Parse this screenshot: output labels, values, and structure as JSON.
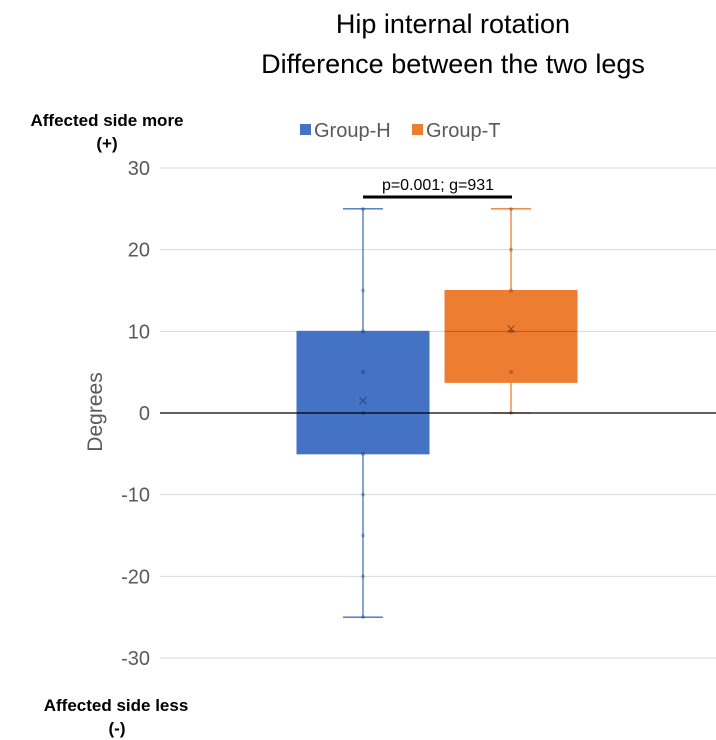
{
  "title_line1": "Hip internal rotation",
  "title_line2": "Difference between the two legs",
  "side_notes": {
    "top_line1": "Affected side more",
    "top_line2": "(+)",
    "bottom_line1": "Affected side less",
    "bottom_line2": "(-)"
  },
  "annotation": "p=0.001; g=931",
  "colors": {
    "group_h": "#4472C4",
    "group_t": "#ED7D31",
    "grid": "#d9d9d9",
    "tick_text": "#595959"
  },
  "chart_data": {
    "type": "box",
    "title": "Hip internal rotation Difference between the two legs",
    "ylabel": "Degrees",
    "ylim": [
      -30,
      30
    ],
    "yticks": [
      -30,
      -20,
      -10,
      0,
      10,
      20,
      30
    ],
    "grid": true,
    "legend": "top",
    "series": [
      {
        "name": "Group-H",
        "min": -25,
        "q1": -5,
        "median": 0,
        "q3": 10,
        "max": 25,
        "mean": 1.5,
        "points": [
          25,
          15,
          10,
          5,
          0,
          -5,
          -10,
          -15,
          -20,
          -25
        ]
      },
      {
        "name": "Group-T",
        "min": 0,
        "q1": 3.75,
        "median": 10,
        "q3": 15,
        "max": 25,
        "mean": 10.3,
        "points": [
          25,
          20,
          15,
          10,
          5,
          0
        ]
      }
    ]
  }
}
